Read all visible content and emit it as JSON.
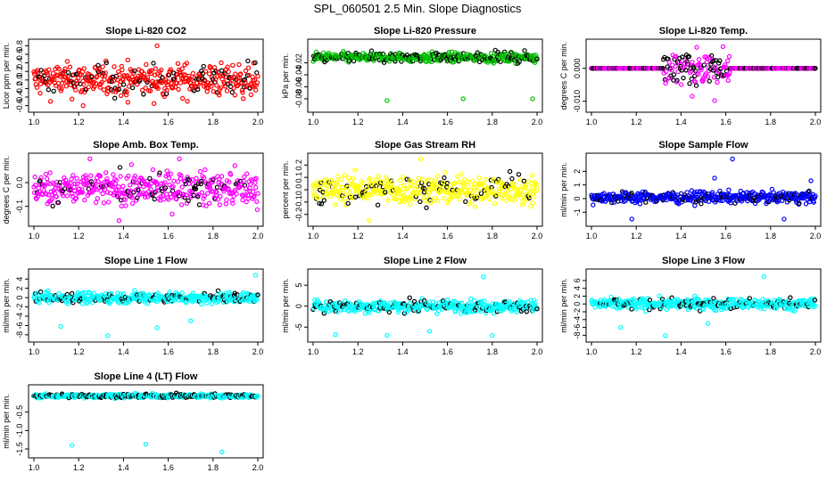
{
  "page": {
    "title": "SPL_060501  2.5 Min. Slope Diagnostics"
  },
  "colors": {
    "black_points": "#000000",
    "axes": "#000000"
  },
  "chart_data": [
    {
      "type": "scatter",
      "title": "Slope Li-820 CO2",
      "ylabel": "Licor ppm per min.",
      "xlabel": "",
      "color": "#ff0000",
      "xlim": [
        1.0,
        2.0
      ],
      "ylim": [
        -0.65,
        0.85
      ],
      "xticks": [
        "1.0",
        "1.2",
        "1.4",
        "1.6",
        "1.8",
        "2.0"
      ],
      "yticks": [
        {
          "v": -0.6,
          "t": "-0.6"
        },
        {
          "v": -0.4,
          "t": "-0.4"
        },
        {
          "v": -0.2,
          "t": "-0.2"
        },
        {
          "v": 0.0,
          "t": "0.0"
        },
        {
          "v": 0.2,
          "t": "0.2"
        },
        {
          "v": 0.4,
          "t": "0.4"
        },
        {
          "v": 0.6,
          "t": "0.6"
        },
        {
          "v": 0.8,
          "t": "0.8"
        }
      ],
      "spread": 0.42,
      "center": 0.0,
      "black_fraction": 0.18,
      "outliers": [
        [
          1.22,
          -0.6
        ],
        [
          1.55,
          0.8
        ],
        [
          1.42,
          -0.52
        ]
      ]
    },
    {
      "type": "scatter",
      "title": "Slope Li-820 Pressure",
      "ylabel": "kPa per min.",
      "xlabel": "",
      "color": "#00c000",
      "xlim": [
        1.0,
        2.0
      ],
      "ylim": [
        -0.095,
        0.012
      ],
      "xticks": [
        "1.0",
        "1.2",
        "1.4",
        "1.6",
        "1.8",
        "2.0"
      ],
      "yticks": [
        {
          "v": -0.08,
          "t": "-0.08"
        },
        {
          "v": -0.06,
          "t": "-0.06"
        },
        {
          "v": -0.04,
          "t": "-0.04"
        },
        {
          "v": -0.02,
          "t": "-0.02"
        }
      ],
      "spread": 0.009,
      "center": -0.011,
      "black_fraction": 0.3,
      "outliers": [
        [
          1.33,
          -0.083
        ],
        [
          1.67,
          -0.08
        ],
        [
          1.98,
          -0.08
        ]
      ]
    },
    {
      "type": "scatter",
      "title": "Slope Li-820 Temp.",
      "ylabel": "degrees C per min.",
      "xlabel": "",
      "color": "#ff00ff",
      "xlim": [
        1.0,
        2.0
      ],
      "ylim": [
        -0.012,
        0.0075
      ],
      "xticks": [
        "1.0",
        "1.2",
        "1.4",
        "1.6",
        "1.8",
        "2.0"
      ],
      "yticks": [
        {
          "v": -0.01,
          "t": "-0.010"
        },
        {
          "v": 0.0,
          "t": "0.000"
        }
      ],
      "spread": 0.0,
      "center": 0.0,
      "black_fraction": 0.3,
      "burst": [
        1.32,
        1.62,
        0.0045
      ],
      "outliers": [
        [
          1.47,
          0.0064
        ],
        [
          1.45,
          -0.0085
        ],
        [
          1.55,
          -0.0098
        ]
      ]
    },
    {
      "type": "scatter",
      "title": "Slope Amb. Box Temp.",
      "ylabel": "degrees C per min.",
      "xlabel": "",
      "color": "#ff00ff",
      "xlim": [
        1.0,
        2.0
      ],
      "ylim": [
        -0.165,
        0.105
      ],
      "xticks": [
        "1.0",
        "1.2",
        "1.4",
        "1.6",
        "1.8",
        "2.0"
      ],
      "yticks": [
        {
          "v": -0.1,
          "t": "-0.1"
        },
        {
          "v": 0.0,
          "t": "0.0"
        }
      ],
      "spread": 0.075,
      "center": -0.025,
      "black_fraction": 0.16,
      "outliers": [
        [
          1.38,
          -0.16
        ],
        [
          1.25,
          0.1
        ],
        [
          1.65,
          0.1
        ]
      ]
    },
    {
      "type": "scatter",
      "title": "Slope Gas Stream RH",
      "ylabel": "percent per min.",
      "xlabel": "",
      "color": "#ffff00",
      "xlim": [
        1.0,
        2.0
      ],
      "ylim": [
        -0.26,
        0.26
      ],
      "xticks": [
        "1.0",
        "1.2",
        "1.4",
        "1.6",
        "1.8",
        "2.0"
      ],
      "yticks": [
        {
          "v": -0.2,
          "t": "-0.2"
        },
        {
          "v": -0.1,
          "t": "-0.1"
        },
        {
          "v": 0.0,
          "t": "0.0"
        },
        {
          "v": 0.1,
          "t": "0.1"
        },
        {
          "v": 0.2,
          "t": "0.2"
        }
      ],
      "spread": 0.13,
      "center": 0.0,
      "black_fraction": 0.18,
      "outliers": [
        [
          1.25,
          -0.25
        ],
        [
          1.48,
          0.25
        ]
      ]
    },
    {
      "type": "scatter",
      "title": "Slope Sample Flow",
      "ylabel": "ml/min per min.",
      "xlabel": "",
      "color": "#0000ff",
      "xlim": [
        1.0,
        2.0
      ],
      "ylim": [
        -1.7,
        3.0
      ],
      "xticks": [
        "1.0",
        "1.2",
        "1.4",
        "1.6",
        "1.8",
        "2.0"
      ],
      "yticks": [
        {
          "v": -1,
          "t": "-1"
        },
        {
          "v": 0,
          "t": "0"
        },
        {
          "v": 1,
          "t": "1"
        },
        {
          "v": 2,
          "t": "2"
        }
      ],
      "spread": 0.45,
      "center": 0.1,
      "black_fraction": 0.18,
      "outliers": [
        [
          1.18,
          -1.5
        ],
        [
          1.63,
          2.9
        ],
        [
          1.98,
          1.3
        ],
        [
          1.55,
          1.5
        ],
        [
          1.86,
          -1.5
        ]
      ]
    },
    {
      "type": "scatter",
      "title": "Slope Line 1 Flow",
      "ylabel": "ml/min per min.",
      "xlabel": "",
      "color": "#00ffff",
      "xlim": [
        1.0,
        2.0
      ],
      "ylim": [
        -8.6,
        5.2
      ],
      "xticks": [
        "1.0",
        "1.2",
        "1.4",
        "1.6",
        "1.8",
        "2.0"
      ],
      "yticks": [
        {
          "v": -8,
          "t": "-8"
        },
        {
          "v": -6,
          "t": "-6"
        },
        {
          "v": -4,
          "t": "-4"
        },
        {
          "v": -2,
          "t": "-2"
        },
        {
          "v": 0,
          "t": "0"
        },
        {
          "v": 2,
          "t": "2"
        },
        {
          "v": 4,
          "t": "4"
        }
      ],
      "spread": 1.3,
      "center": 0.0,
      "black_fraction": 0.2,
      "outliers": [
        [
          1.33,
          -8.2
        ],
        [
          1.12,
          -6.2
        ],
        [
          1.99,
          4.8
        ],
        [
          1.7,
          -5.0
        ],
        [
          1.55,
          -6.5
        ]
      ]
    },
    {
      "type": "scatter",
      "title": "Slope Line 2 Flow",
      "ylabel": "ml/min per min.",
      "xlabel": "",
      "color": "#00ffff",
      "xlim": [
        1.0,
        2.0
      ],
      "ylim": [
        -7.5,
        7.8
      ],
      "xticks": [
        "1.0",
        "1.2",
        "1.4",
        "1.6",
        "1.8",
        "2.0"
      ],
      "yticks": [
        {
          "v": -5,
          "t": "-5"
        },
        {
          "v": 0,
          "t": "0"
        },
        {
          "v": 5,
          "t": "5"
        }
      ],
      "spread": 1.6,
      "center": 0.0,
      "black_fraction": 0.16,
      "outliers": [
        [
          1.1,
          -6.8
        ],
        [
          1.33,
          -7.0
        ],
        [
          1.76,
          7.0
        ],
        [
          1.8,
          -7.0
        ],
        [
          1.52,
          -6.0
        ]
      ]
    },
    {
      "type": "scatter",
      "title": "Slope Line 3 Flow",
      "ylabel": "ml/min per min.",
      "xlabel": "",
      "color": "#00ffff",
      "xlim": [
        1.0,
        2.0
      ],
      "ylim": [
        -8.6,
        7.8
      ],
      "xticks": [
        "1.0",
        "1.2",
        "1.4",
        "1.6",
        "1.8",
        "2.0"
      ],
      "yticks": [
        {
          "v": -8,
          "t": "-8"
        },
        {
          "v": -6,
          "t": "-6"
        },
        {
          "v": -4,
          "t": "-4"
        },
        {
          "v": -2,
          "t": "-2"
        },
        {
          "v": 0,
          "t": "0"
        },
        {
          "v": 2,
          "t": "2"
        },
        {
          "v": 4,
          "t": "4"
        },
        {
          "v": 6,
          "t": "6"
        }
      ],
      "spread": 1.6,
      "center": 0.0,
      "black_fraction": 0.18,
      "outliers": [
        [
          1.33,
          -8.1
        ],
        [
          1.77,
          7.0
        ],
        [
          1.13,
          -6.0
        ],
        [
          1.52,
          -5.0
        ]
      ]
    },
    {
      "type": "scatter",
      "title": "Slope Line 4 (LT) Flow",
      "ylabel": "ml/min per min.",
      "xlabel": "",
      "color": "#00ffff",
      "xlim": [
        1.0,
        2.0
      ],
      "ylim": [
        -1.62,
        0.12
      ],
      "xticks": [
        "1.0",
        "1.2",
        "1.4",
        "1.6",
        "1.8",
        "2.0"
      ],
      "yticks": [
        {
          "v": -1.5,
          "t": "-1.5"
        },
        {
          "v": -1.0,
          "t": "-1.0"
        },
        {
          "v": -0.5,
          "t": "-0.5"
        }
      ],
      "spread": 0.06,
      "center": -0.06,
      "black_fraction": 0.32,
      "outliers": [
        [
          1.17,
          -1.4
        ],
        [
          1.5,
          -1.37
        ],
        [
          1.84,
          -1.58
        ]
      ]
    }
  ]
}
